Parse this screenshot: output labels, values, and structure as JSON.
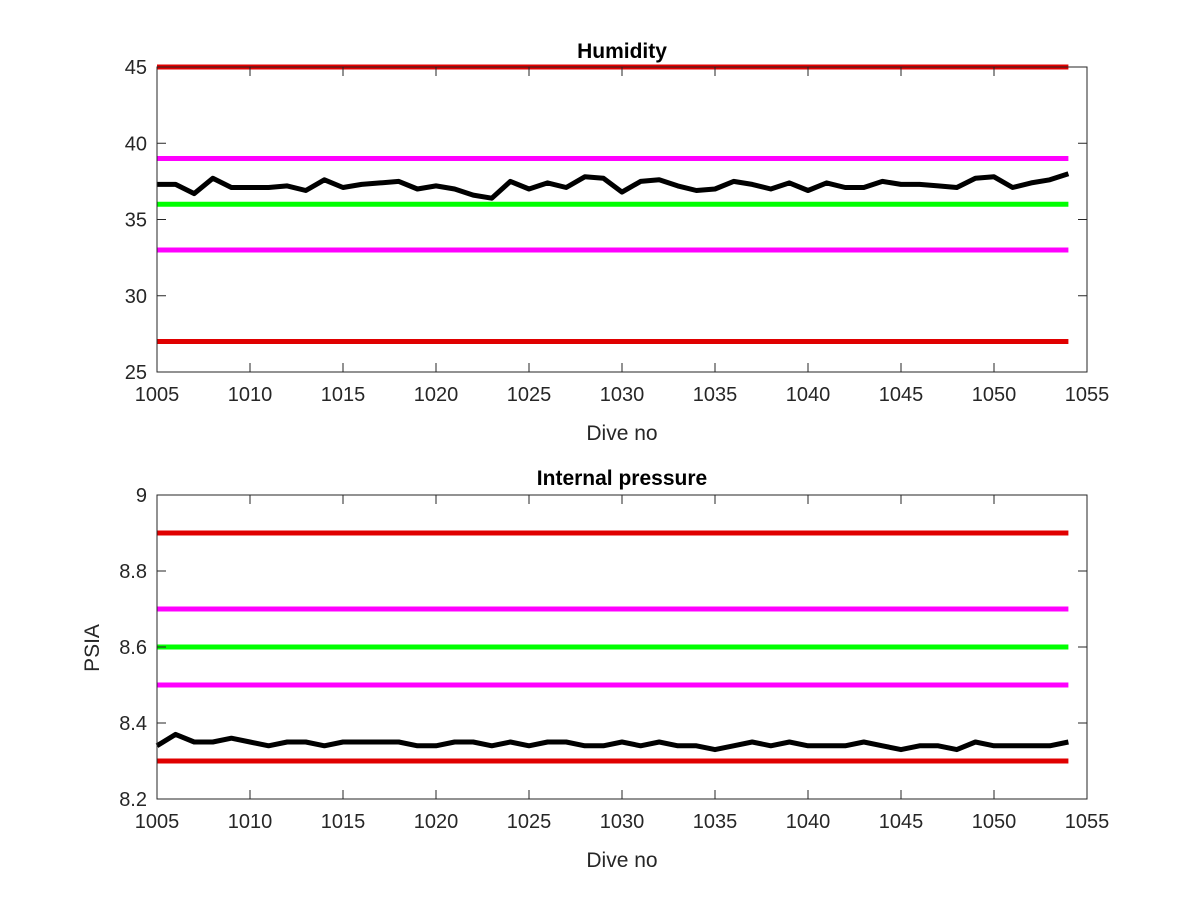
{
  "colors": {
    "limit_red": "#e00000",
    "limit_magenta": "#ff00ff",
    "target_green": "#00ff00",
    "measured_black": "#000000",
    "axis": "#262626"
  },
  "chart_data": [
    {
      "type": "line",
      "title": "Humidity",
      "xlabel": "Dive no",
      "ylabel": "",
      "xlim": [
        1005,
        1055
      ],
      "ylim": [
        25,
        45
      ],
      "xticks": [
        1005,
        1010,
        1015,
        1020,
        1025,
        1030,
        1035,
        1040,
        1045,
        1050,
        1055
      ],
      "yticks": [
        25,
        30,
        35,
        40,
        45
      ],
      "ytick_labels": [
        "25",
        "30",
        "35",
        "40",
        "45"
      ],
      "grid": false,
      "legend": "none",
      "reference_lines": [
        {
          "y": 45,
          "color": "limit_red",
          "x": [
            1005,
            1054
          ]
        },
        {
          "y": 39,
          "color": "limit_magenta",
          "x": [
            1005,
            1054
          ]
        },
        {
          "y": 36,
          "color": "target_green",
          "x": [
            1005,
            1054
          ]
        },
        {
          "y": 33,
          "color": "limit_magenta",
          "x": [
            1005,
            1054
          ]
        },
        {
          "y": 27,
          "color": "limit_red",
          "x": [
            1005,
            1054
          ]
        }
      ],
      "series": [
        {
          "color": "measured_black",
          "x": [
            1005,
            1006,
            1007,
            1008,
            1009,
            1010,
            1011,
            1012,
            1013,
            1014,
            1015,
            1016,
            1017,
            1018,
            1019,
            1020,
            1021,
            1022,
            1023,
            1024,
            1025,
            1026,
            1027,
            1028,
            1029,
            1030,
            1031,
            1032,
            1033,
            1034,
            1035,
            1036,
            1037,
            1038,
            1039,
            1040,
            1041,
            1042,
            1043,
            1044,
            1045,
            1046,
            1047,
            1048,
            1049,
            1050,
            1051,
            1052,
            1053,
            1054
          ],
          "values": [
            37.3,
            37.3,
            36.7,
            37.7,
            37.1,
            37.1,
            37.1,
            37.2,
            36.9,
            37.6,
            37.1,
            37.3,
            37.4,
            37.5,
            37.0,
            37.2,
            37.0,
            36.6,
            36.4,
            37.5,
            37.0,
            37.4,
            37.1,
            37.8,
            37.7,
            36.8,
            37.5,
            37.6,
            37.2,
            36.9,
            37.0,
            37.5,
            37.3,
            37.0,
            37.4,
            36.9,
            37.4,
            37.1,
            37.1,
            37.5,
            37.3,
            37.3,
            37.2,
            37.1,
            37.7,
            37.8,
            37.1,
            37.4,
            37.6,
            38.0
          ]
        }
      ]
    },
    {
      "type": "line",
      "title": "Internal pressure",
      "xlabel": "Dive no",
      "ylabel": "PSIA",
      "xlim": [
        1005,
        1055
      ],
      "ylim": [
        8.2,
        9.0
      ],
      "xticks": [
        1005,
        1010,
        1015,
        1020,
        1025,
        1030,
        1035,
        1040,
        1045,
        1050,
        1055
      ],
      "yticks": [
        8.2,
        8.4,
        8.6,
        8.8,
        9.0
      ],
      "ytick_labels": [
        "8.2",
        "8.4",
        "8.6",
        "8.8",
        "9"
      ],
      "grid": false,
      "legend": "none",
      "reference_lines": [
        {
          "y": 8.9,
          "color": "limit_red",
          "x": [
            1005,
            1054
          ]
        },
        {
          "y": 8.7,
          "color": "limit_magenta",
          "x": [
            1005,
            1054
          ]
        },
        {
          "y": 8.6,
          "color": "target_green",
          "x": [
            1005,
            1054
          ]
        },
        {
          "y": 8.5,
          "color": "limit_magenta",
          "x": [
            1005,
            1054
          ]
        },
        {
          "y": 8.3,
          "color": "limit_red",
          "x": [
            1005,
            1054
          ]
        }
      ],
      "series": [
        {
          "color": "measured_black",
          "x": [
            1005,
            1006,
            1007,
            1008,
            1009,
            1010,
            1011,
            1012,
            1013,
            1014,
            1015,
            1016,
            1017,
            1018,
            1019,
            1020,
            1021,
            1022,
            1023,
            1024,
            1025,
            1026,
            1027,
            1028,
            1029,
            1030,
            1031,
            1032,
            1033,
            1034,
            1035,
            1036,
            1037,
            1038,
            1039,
            1040,
            1041,
            1042,
            1043,
            1044,
            1045,
            1046,
            1047,
            1048,
            1049,
            1050,
            1051,
            1052,
            1053,
            1054
          ],
          "values": [
            8.34,
            8.37,
            8.35,
            8.35,
            8.36,
            8.35,
            8.34,
            8.35,
            8.35,
            8.34,
            8.35,
            8.35,
            8.35,
            8.35,
            8.34,
            8.34,
            8.35,
            8.35,
            8.34,
            8.35,
            8.34,
            8.35,
            8.35,
            8.34,
            8.34,
            8.35,
            8.34,
            8.35,
            8.34,
            8.34,
            8.33,
            8.34,
            8.35,
            8.34,
            8.35,
            8.34,
            8.34,
            8.34,
            8.35,
            8.34,
            8.33,
            8.34,
            8.34,
            8.33,
            8.35,
            8.34,
            8.34,
            8.34,
            8.34,
            8.35
          ]
        }
      ]
    }
  ]
}
